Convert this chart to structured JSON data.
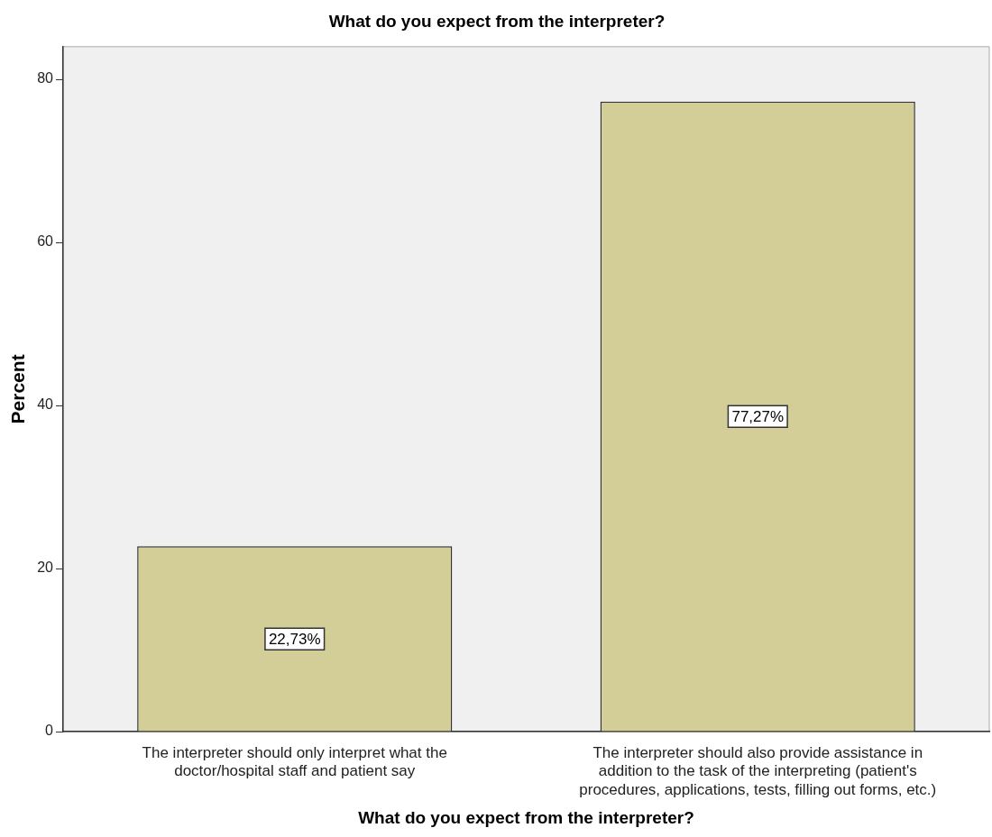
{
  "chart_data": {
    "type": "bar",
    "title": "What do you expect from the interpreter?",
    "xlabel": "What do you expect from the interpreter?",
    "ylabel": "Percent",
    "categories": [
      "The interpreter should only interpret what the doctor/hospital staff and patient say",
      "The interpreter should also provide assistance in addition to the task of the interpreting (patient's procedures, applications, tests, filling out forms, etc.)"
    ],
    "values": [
      22.73,
      77.27
    ],
    "value_labels": [
      "22,73%",
      "77,27%"
    ],
    "color": "#d3ce98",
    "ylim": [
      0,
      84
    ],
    "yticks": [
      0,
      20,
      40,
      60,
      80
    ],
    "grid": false,
    "legend": false
  }
}
